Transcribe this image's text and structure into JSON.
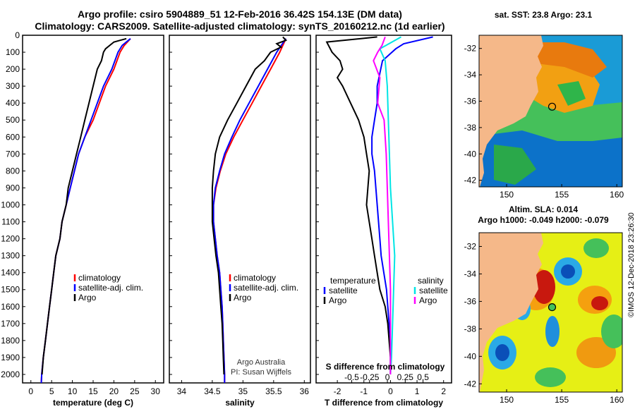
{
  "header": {
    "title_line1": "Argo profile: csiro 5904889_51 12-Feb-2016 36.42S 154.13E (DM data)",
    "title_line2": "Climatology: CARS2009. Satellite-adjusted climatology: synTS_20160212.nc (1d earlier)"
  },
  "maps": {
    "sst_title": "sat. SST: 23.8 Argo: 23.1",
    "sla_title1": "Altim. SLA: 0.014",
    "sla_title2": "Argo h1000: -0.049 h2000: -0.079",
    "lat_ticks": [
      "-32",
      "-34",
      "-36",
      "-38",
      "-40",
      "-42"
    ],
    "lon_ticks": [
      "150",
      "155",
      "160"
    ],
    "argo_position": {
      "lon": 154.13,
      "lat": -36.42
    }
  },
  "credit": "©IMOS 12-Dec-2018 23:26:30",
  "annotations": {
    "argo_australia": "Argo Australia",
    "pi": "PI: Susan Wijffels"
  },
  "colors": {
    "climatology": "#ff0000",
    "satellite": "#0000ff",
    "argo": "#000000",
    "salinity_satellite": "#00e5e5",
    "salinity_argo": "#ff00ff",
    "land": "#f5b889"
  },
  "chart_data": [
    {
      "type": "line",
      "name": "temperature-profile",
      "xlabel": "temperature (deg C)",
      "ylabel": "",
      "xlim": [
        -2,
        32
      ],
      "ylim": [
        0,
        2050
      ],
      "x_ticks": [
        "0",
        "5",
        "10",
        "15",
        "20",
        "25",
        "30"
      ],
      "y_ticks": [
        "0",
        "100",
        "200",
        "300",
        "400",
        "500",
        "600",
        "700",
        "800",
        "900",
        "1000",
        "1100",
        "1200",
        "1300",
        "1400",
        "1500",
        "1600",
        "1700",
        "1800",
        "1900",
        "2000"
      ],
      "legend": [
        "climatology",
        "satellite-adj. clim.",
        "Argo"
      ],
      "series": [
        {
          "name": "climatology",
          "points": [
            [
              24,
              20
            ],
            [
              22.5,
              60
            ],
            [
              21.5,
              100
            ],
            [
              20,
              200
            ],
            [
              18,
              300
            ],
            [
              16.5,
              400
            ],
            [
              15,
              500
            ],
            [
              13,
              600
            ],
            [
              11.5,
              700
            ],
            [
              10.5,
              800
            ],
            [
              9.5,
              900
            ],
            [
              8.5,
              1000
            ],
            [
              7.5,
              1100
            ],
            [
              7,
              1200
            ],
            [
              6,
              1300
            ],
            [
              5.5,
              1400
            ],
            [
              5,
              1500
            ],
            [
              4.5,
              1600
            ],
            [
              4,
              1700
            ],
            [
              3.5,
              1800
            ],
            [
              3,
              1900
            ],
            [
              2.6,
              2000
            ],
            [
              2.5,
              2050
            ]
          ]
        },
        {
          "name": "satellite",
          "points": [
            [
              24,
              20
            ],
            [
              22,
              60
            ],
            [
              21,
              100
            ],
            [
              19.5,
              200
            ],
            [
              17.5,
              300
            ],
            [
              16,
              400
            ],
            [
              14.5,
              500
            ],
            [
              13,
              600
            ],
            [
              11.5,
              700
            ],
            [
              10.5,
              800
            ],
            [
              9.5,
              900
            ],
            [
              8.5,
              1000
            ],
            [
              7.5,
              1100
            ],
            [
              7,
              1200
            ],
            [
              6,
              1300
            ],
            [
              5.5,
              1400
            ],
            [
              5,
              1500
            ],
            [
              4.5,
              1600
            ],
            [
              4,
              1700
            ],
            [
              3.5,
              1800
            ],
            [
              3,
              1900
            ],
            [
              2.6,
              2000
            ],
            [
              2.5,
              2050
            ]
          ]
        },
        {
          "name": "argo",
          "points": [
            [
              23,
              20
            ],
            [
              21.5,
              30
            ],
            [
              20,
              40
            ],
            [
              18,
              80
            ],
            [
              17.5,
              100
            ],
            [
              17,
              150
            ],
            [
              16,
              200
            ],
            [
              15,
              300
            ],
            [
              14,
              400
            ],
            [
              13,
              500
            ],
            [
              12,
              600
            ],
            [
              11,
              700
            ],
            [
              10,
              800
            ],
            [
              9,
              900
            ],
            [
              8.5,
              1000
            ],
            [
              7.5,
              1100
            ],
            [
              7,
              1200
            ],
            [
              6,
              1300
            ],
            [
              5.5,
              1400
            ],
            [
              5,
              1500
            ],
            [
              4.5,
              1600
            ],
            [
              4,
              1700
            ],
            [
              3.5,
              1800
            ],
            [
              3,
              1900
            ],
            [
              2.7,
              2000
            ]
          ]
        }
      ]
    },
    {
      "type": "line",
      "name": "salinity-profile",
      "xlabel": "salinity",
      "xlim": [
        33.8,
        36.1
      ],
      "ylim": [
        0,
        2050
      ],
      "x_ticks": [
        "34",
        "34.5",
        "35",
        "35.5",
        "36"
      ],
      "legend": [
        "climatology",
        "satellite-adj. clim.",
        "Argo"
      ],
      "series": [
        {
          "name": "climatology",
          "points": [
            [
              35.7,
              20
            ],
            [
              35.6,
              100
            ],
            [
              35.45,
              200
            ],
            [
              35.3,
              300
            ],
            [
              35.15,
              400
            ],
            [
              35.0,
              500
            ],
            [
              34.85,
              600
            ],
            [
              34.72,
              700
            ],
            [
              34.63,
              800
            ],
            [
              34.56,
              900
            ],
            [
              34.52,
              1000
            ],
            [
              34.52,
              1100
            ],
            [
              34.55,
              1200
            ],
            [
              34.58,
              1300
            ],
            [
              34.62,
              1400
            ],
            [
              34.64,
              1500
            ],
            [
              34.66,
              1600
            ],
            [
              34.67,
              1700
            ],
            [
              34.68,
              1800
            ],
            [
              34.69,
              1900
            ],
            [
              34.7,
              2000
            ],
            [
              34.7,
              2050
            ]
          ]
        },
        {
          "name": "satellite",
          "points": [
            [
              35.7,
              20
            ],
            [
              35.55,
              100
            ],
            [
              35.4,
              200
            ],
            [
              35.25,
              300
            ],
            [
              35.1,
              400
            ],
            [
              34.95,
              500
            ],
            [
              34.82,
              600
            ],
            [
              34.7,
              700
            ],
            [
              34.62,
              800
            ],
            [
              34.55,
              900
            ],
            [
              34.52,
              1000
            ],
            [
              34.52,
              1100
            ],
            [
              34.55,
              1200
            ],
            [
              34.58,
              1300
            ],
            [
              34.62,
              1400
            ],
            [
              34.64,
              1500
            ],
            [
              34.66,
              1600
            ],
            [
              34.67,
              1700
            ],
            [
              34.68,
              1800
            ],
            [
              34.69,
              1900
            ],
            [
              34.7,
              2000
            ],
            [
              34.7,
              2050
            ]
          ]
        },
        {
          "name": "argo",
          "points": [
            [
              35.65,
              10
            ],
            [
              35.7,
              30
            ],
            [
              35.55,
              50
            ],
            [
              35.62,
              70
            ],
            [
              35.45,
              100
            ],
            [
              35.35,
              150
            ],
            [
              35.2,
              200
            ],
            [
              35.05,
              300
            ],
            [
              34.9,
              400
            ],
            [
              34.75,
              500
            ],
            [
              34.62,
              600
            ],
            [
              34.55,
              700
            ],
            [
              34.52,
              800
            ],
            [
              34.5,
              900
            ],
            [
              34.5,
              1000
            ],
            [
              34.5,
              1100
            ],
            [
              34.53,
              1200
            ],
            [
              34.56,
              1300
            ],
            [
              34.6,
              1400
            ],
            [
              34.62,
              1500
            ],
            [
              34.64,
              1600
            ],
            [
              34.66,
              1700
            ],
            [
              34.67,
              1800
            ],
            [
              34.68,
              1900
            ],
            [
              34.69,
              2000
            ]
          ]
        }
      ]
    },
    {
      "type": "line",
      "name": "difference-profile",
      "xlabel": "T difference from climatology",
      "top_label": "S difference from climatology",
      "xlim": [
        -2.8,
        2.3
      ],
      "ylim": [
        0,
        2050
      ],
      "x_ticks": [
        "-2",
        "-1",
        "0",
        "1",
        "2"
      ],
      "top_ticks": [
        "-0.5",
        "-0.25",
        "0",
        "0.25",
        "0.5"
      ],
      "legend_left_title": "temperature",
      "legend_right_title": "salinity",
      "legend_left": [
        "satellite",
        "Argo"
      ],
      "legend_right": [
        "satellite",
        "Argo"
      ],
      "series": [
        {
          "name": "temp-satellite",
          "points": [
            [
              1.6,
              10
            ],
            [
              0.5,
              50
            ],
            [
              0.2,
              80
            ],
            [
              -0.3,
              150
            ],
            [
              -0.5,
              300
            ],
            [
              -0.5,
              400
            ],
            [
              -0.6,
              500
            ],
            [
              -0.7,
              600
            ],
            [
              -0.7,
              700
            ],
            [
              -0.6,
              800
            ],
            [
              -0.55,
              900
            ],
            [
              -0.5,
              1000
            ],
            [
              -0.45,
              1100
            ],
            [
              -0.4,
              1200
            ],
            [
              -0.35,
              1300
            ],
            [
              -0.25,
              1400
            ],
            [
              -0.15,
              1500
            ],
            [
              -0.1,
              1600
            ],
            [
              -0.05,
              1700
            ],
            [
              0,
              1800
            ],
            [
              0,
              1900
            ],
            [
              0,
              2000
            ]
          ]
        },
        {
          "name": "temp-argo",
          "points": [
            [
              -0.5,
              10
            ],
            [
              -2.4,
              40
            ],
            [
              -2.2,
              100
            ],
            [
              -1.9,
              150
            ],
            [
              -1.8,
              200
            ],
            [
              -2.0,
              250
            ],
            [
              -1.8,
              300
            ],
            [
              -1.5,
              400
            ],
            [
              -1.2,
              500
            ],
            [
              -1.0,
              600
            ],
            [
              -0.9,
              700
            ],
            [
              -0.8,
              800
            ],
            [
              -0.85,
              900
            ],
            [
              -0.9,
              1000
            ],
            [
              -0.8,
              1100
            ],
            [
              -0.7,
              1200
            ],
            [
              -0.6,
              1300
            ],
            [
              -0.5,
              1400
            ],
            [
              -0.4,
              1500
            ],
            [
              -0.2,
              1600
            ],
            [
              -0.1,
              1700
            ],
            [
              -0.05,
              1800
            ],
            [
              0,
              1900
            ],
            [
              0,
              2000
            ]
          ]
        },
        {
          "name": "sal-satellite",
          "points": [
            [
              0.1,
              10
            ],
            [
              -0.1,
              80
            ],
            [
              -0.05,
              150
            ],
            [
              -0.03,
              300
            ],
            [
              -0.02,
              500
            ],
            [
              -0.01,
              700
            ],
            [
              0.0,
              900
            ],
            [
              0.02,
              1100
            ],
            [
              0.04,
              1300
            ],
            [
              0.03,
              1500
            ],
            [
              0.02,
              1700
            ],
            [
              0.01,
              1900
            ],
            [
              0.0,
              2000
            ]
          ]
        },
        {
          "name": "sal-argo",
          "points": [
            [
              -0.05,
              10
            ],
            [
              -0.08,
              60
            ],
            [
              -0.12,
              100
            ],
            [
              -0.16,
              150
            ],
            [
              -0.1,
              250
            ],
            [
              -0.12,
              400
            ],
            [
              -0.06,
              500
            ],
            [
              -0.04,
              700
            ],
            [
              -0.03,
              900
            ],
            [
              -0.02,
              1100
            ],
            [
              -0.01,
              1300
            ],
            [
              0.0,
              1500
            ],
            [
              0.0,
              1700
            ],
            [
              0.0,
              1900
            ],
            [
              0.0,
              2000
            ]
          ]
        }
      ]
    }
  ]
}
